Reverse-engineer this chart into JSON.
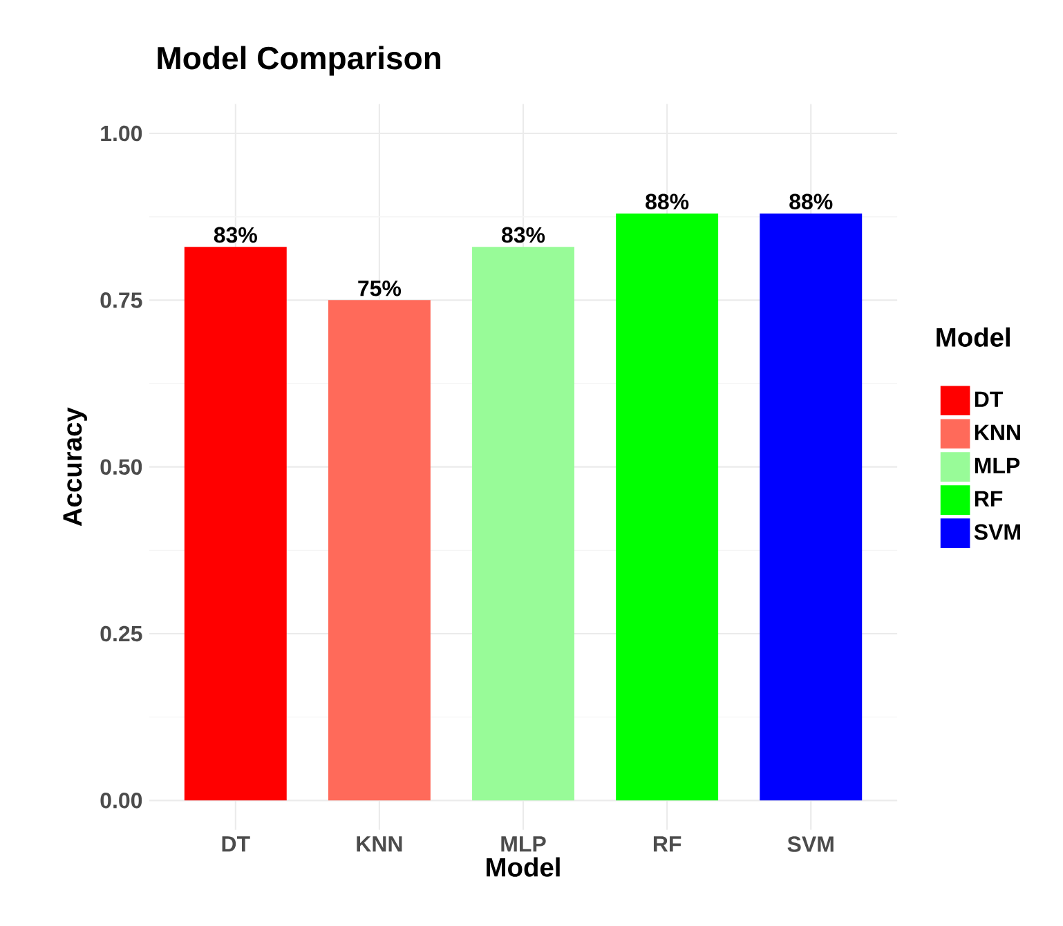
{
  "chart_data": {
    "type": "bar",
    "title": "Model Comparison",
    "xlabel": "Model",
    "ylabel": "Accuracy",
    "legend_title": "Model",
    "categories": [
      "DT",
      "KNN",
      "MLP",
      "RF",
      "SVM"
    ],
    "series": [
      {
        "name": "DT",
        "color": "#ff0000",
        "values": [
          0.83,
          null,
          null,
          null,
          null
        ],
        "value_labels": [
          "83%",
          null,
          null,
          null,
          null
        ]
      },
      {
        "name": "KNN",
        "color": "#ff6a5a",
        "values": [
          null,
          0.75,
          null,
          null,
          null
        ],
        "value_labels": [
          null,
          "75%",
          null,
          null,
          null
        ]
      },
      {
        "name": "MLP",
        "color": "#98fb98",
        "values": [
          null,
          null,
          0.83,
          null,
          null
        ],
        "value_labels": [
          null,
          null,
          "83%",
          null,
          null
        ]
      },
      {
        "name": "RF",
        "color": "#00ff00",
        "values": [
          null,
          null,
          null,
          0.88,
          null
        ],
        "value_labels": [
          null,
          null,
          null,
          "88%",
          null
        ]
      },
      {
        "name": "SVM",
        "color": "#0000ff",
        "values": [
          null,
          null,
          null,
          null,
          0.88
        ],
        "value_labels": [
          null,
          null,
          null,
          null,
          "88%"
        ]
      }
    ],
    "ylim": [
      -0.044,
      1.044
    ],
    "yticks": [
      {
        "value": 0,
        "label": "0.00"
      },
      {
        "value": 0.25,
        "label": "0.25"
      },
      {
        "value": 0.5,
        "label": "0.50"
      },
      {
        "value": 0.75,
        "label": "0.75"
      },
      {
        "value": 1,
        "label": "1.00"
      }
    ],
    "grid": true,
    "legend": "right"
  }
}
